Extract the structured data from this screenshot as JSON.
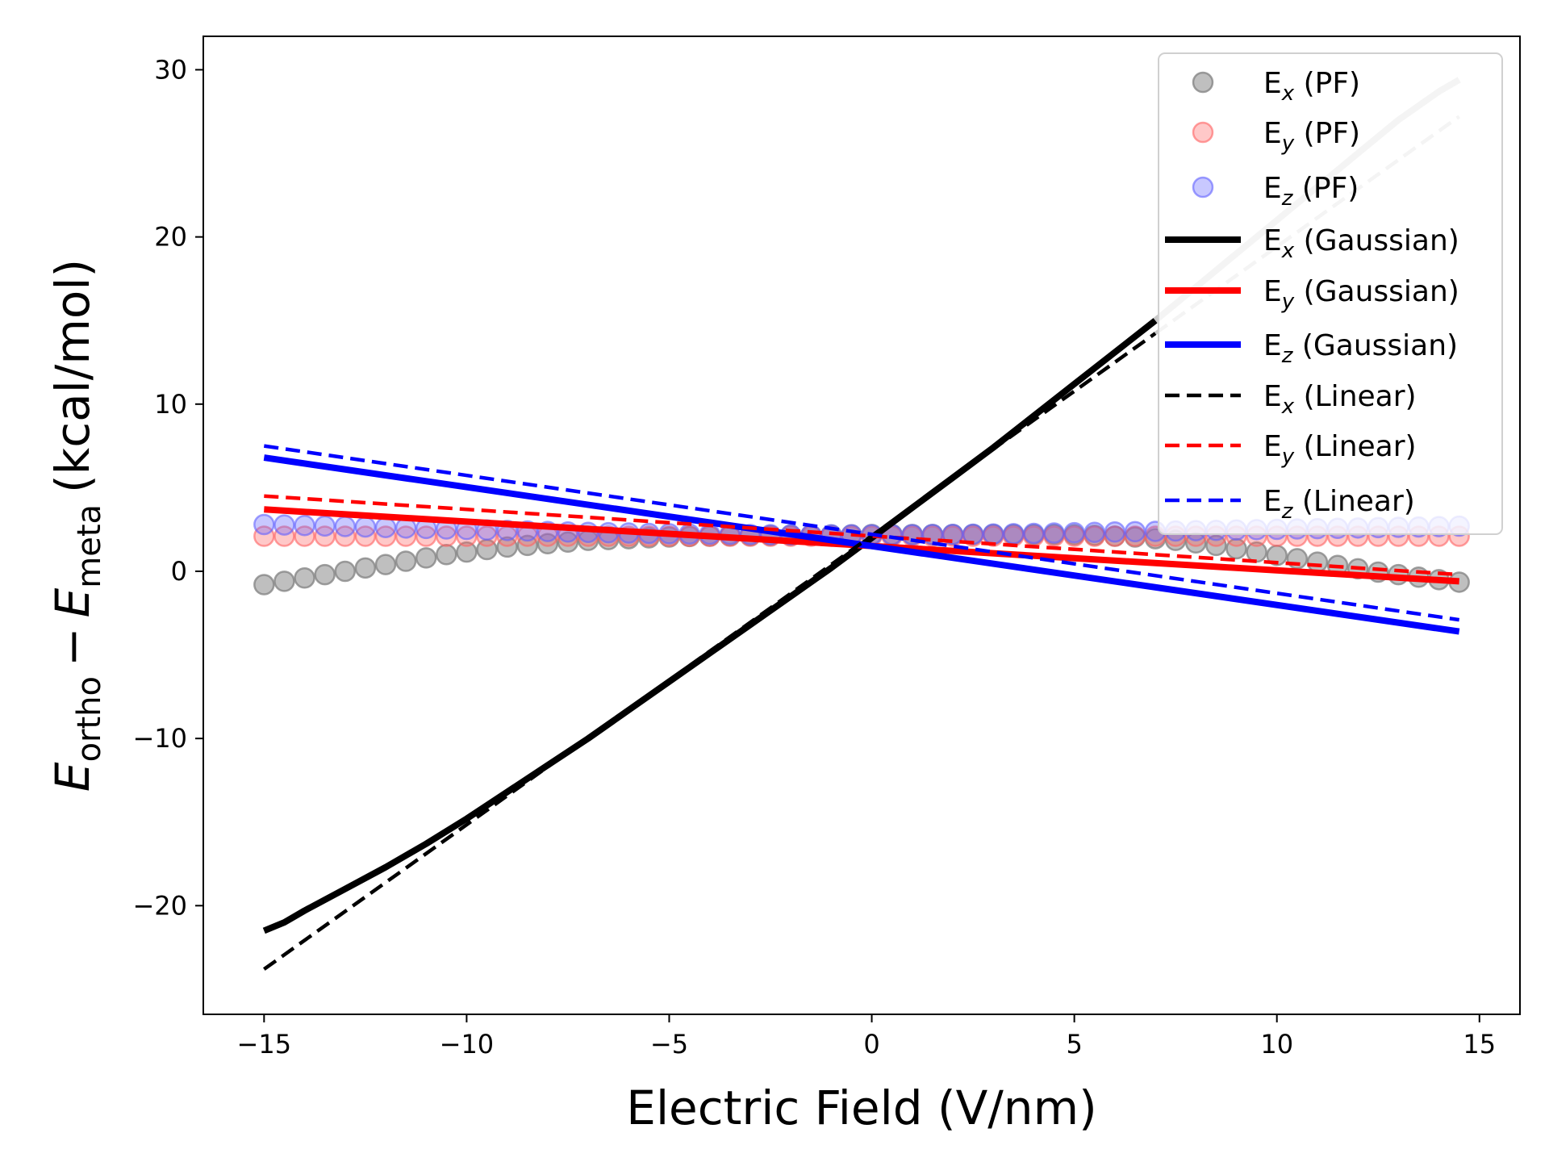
{
  "chart_data": {
    "type": "line",
    "xlabel": "Electric Field (V/nm)",
    "ylabel": {
      "main": "E",
      "sub1": "ortho",
      "minus": "−",
      "sub2": "meta",
      "unit": "(kcal/mol)"
    },
    "xlim": [
      -16.5,
      16
    ],
    "ylim": [
      -26.5,
      32
    ],
    "xticks": [
      -15,
      -10,
      -5,
      0,
      5,
      10,
      15
    ],
    "xtick_labels": [
      "−15",
      "−10",
      "−5",
      "0",
      "5",
      "10",
      "15"
    ],
    "yticks": [
      -20,
      -10,
      0,
      10,
      20,
      30
    ],
    "ytick_labels": [
      "−20",
      "−10",
      "0",
      "10",
      "20",
      "30"
    ],
    "grid": false,
    "legend_position": "top-right",
    "x": [
      -15,
      -14.5,
      -14,
      -13.5,
      -13,
      -12.5,
      -12,
      -11.5,
      -11,
      -10.5,
      -10,
      -9.5,
      -9,
      -8.5,
      -8,
      -7.5,
      -7,
      -6.5,
      -6,
      -5.5,
      -5,
      -4.5,
      -4,
      -3.5,
      -3,
      -2.5,
      -2,
      -1.5,
      -1,
      -0.5,
      0,
      0.5,
      1,
      1.5,
      2,
      2.5,
      3,
      3.5,
      4,
      4.5,
      5,
      5.5,
      6,
      6.5,
      7,
      7.5,
      8,
      8.5,
      9,
      9.5,
      10,
      10.5,
      11,
      11.5,
      12,
      12.5,
      13,
      13.5,
      14,
      14.5
    ],
    "series": [
      {
        "key": "ex_pf",
        "label": {
          "base": "E",
          "sub": "x",
          "rest": " (PF)"
        },
        "style": "scatter",
        "color": "#808080",
        "opacity": 0.5,
        "values": [
          -0.8,
          -0.6,
          -0.4,
          -0.2,
          0.0,
          0.2,
          0.4,
          0.6,
          0.8,
          1.0,
          1.15,
          1.3,
          1.45,
          1.55,
          1.65,
          1.75,
          1.85,
          1.9,
          1.95,
          2.0,
          2.05,
          2.08,
          2.1,
          2.12,
          2.13,
          2.14,
          2.15,
          2.16,
          2.17,
          2.18,
          2.2,
          2.2,
          2.2,
          2.2,
          2.2,
          2.2,
          2.2,
          2.2,
          2.2,
          2.2,
          2.18,
          2.15,
          2.1,
          2.05,
          1.95,
          1.85,
          1.7,
          1.55,
          1.35,
          1.15,
          0.95,
          0.75,
          0.55,
          0.35,
          0.15,
          -0.05,
          -0.2,
          -0.35,
          -0.5,
          -0.65
        ]
      },
      {
        "key": "ey_pf",
        "label": {
          "base": "E",
          "sub": "y",
          "rest": " (PF)"
        },
        "style": "scatter",
        "color": "#ff6060",
        "opacity": 0.35,
        "values": [
          2.1,
          2.1,
          2.1,
          2.1,
          2.1,
          2.1,
          2.1,
          2.1,
          2.1,
          2.1,
          2.1,
          2.1,
          2.1,
          2.1,
          2.1,
          2.1,
          2.1,
          2.1,
          2.1,
          2.1,
          2.1,
          2.1,
          2.1,
          2.1,
          2.1,
          2.1,
          2.1,
          2.1,
          2.1,
          2.1,
          2.1,
          2.1,
          2.1,
          2.1,
          2.1,
          2.1,
          2.1,
          2.1,
          2.1,
          2.1,
          2.1,
          2.1,
          2.1,
          2.1,
          2.1,
          2.1,
          2.1,
          2.1,
          2.1,
          2.1,
          2.1,
          2.1,
          2.1,
          2.1,
          2.1,
          2.1,
          2.1,
          2.1,
          2.1,
          2.1
        ]
      },
      {
        "key": "ez_pf",
        "label": {
          "base": "E",
          "sub": "z",
          "rest": " (PF)"
        },
        "style": "scatter",
        "color": "#6060ff",
        "opacity": 0.35,
        "values": [
          2.8,
          2.77,
          2.74,
          2.71,
          2.68,
          2.65,
          2.62,
          2.59,
          2.56,
          2.53,
          2.5,
          2.47,
          2.44,
          2.41,
          2.38,
          2.35,
          2.33,
          2.31,
          2.29,
          2.27,
          2.25,
          2.23,
          2.22,
          2.21,
          2.2,
          2.19,
          2.18,
          2.18,
          2.18,
          2.18,
          2.18,
          2.18,
          2.19,
          2.2,
          2.21,
          2.22,
          2.23,
          2.25,
          2.27,
          2.29,
          2.31,
          2.33,
          2.35,
          2.37,
          2.39,
          2.41,
          2.43,
          2.45,
          2.47,
          2.49,
          2.51,
          2.53,
          2.55,
          2.57,
          2.59,
          2.61,
          2.63,
          2.65,
          2.67,
          2.7
        ]
      },
      {
        "key": "ex_gauss",
        "label": {
          "base": "E",
          "sub": "x",
          "rest": " (Gaussian)"
        },
        "style": "solid",
        "color": "#000000",
        "points": [
          [
            -15,
            -21.5
          ],
          [
            -14.5,
            -21.0
          ],
          [
            -14,
            -20.3
          ],
          [
            -13,
            -19.0
          ],
          [
            -12,
            -17.7
          ],
          [
            -11,
            -16.3
          ],
          [
            -10,
            -14.8
          ],
          [
            -9,
            -13.2
          ],
          [
            -8,
            -11.6
          ],
          [
            -7,
            -10.0
          ],
          [
            -6,
            -8.3
          ],
          [
            -5,
            -6.6
          ],
          [
            -4,
            -4.9
          ],
          [
            -3,
            -3.2
          ],
          [
            -2,
            -1.5
          ],
          [
            -1,
            0.2
          ],
          [
            0,
            2.0
          ],
          [
            1,
            3.8
          ],
          [
            2,
            5.6
          ],
          [
            3,
            7.4
          ],
          [
            4,
            9.3
          ],
          [
            5,
            11.2
          ],
          [
            6,
            13.1
          ],
          [
            7,
            15.0
          ],
          [
            8,
            17.0
          ],
          [
            9,
            19.0
          ],
          [
            10,
            21.0
          ],
          [
            11,
            23.0
          ],
          [
            12,
            25.0
          ],
          [
            13,
            27.0
          ],
          [
            14,
            28.7
          ],
          [
            14.5,
            29.4
          ]
        ],
        "fade_from_x": 7,
        "fade_color": "#c8c8c8"
      },
      {
        "key": "ey_gauss",
        "label": {
          "base": "E",
          "sub": "y",
          "rest": " (Gaussian)"
        },
        "style": "solid",
        "color": "#ff0000",
        "points": [
          [
            -15,
            3.7
          ],
          [
            14.5,
            -0.6
          ]
        ]
      },
      {
        "key": "ez_gauss",
        "label": {
          "base": "E",
          "sub": "z",
          "rest": " (Gaussian)"
        },
        "style": "solid",
        "color": "#0000ff",
        "points": [
          [
            -15,
            6.8
          ],
          [
            14.5,
            -3.6
          ]
        ]
      },
      {
        "key": "ex_lin",
        "label": {
          "base": "E",
          "sub": "x",
          "rest": " (Linear)"
        },
        "style": "dashed",
        "color": "#000000",
        "points": [
          [
            -15,
            -23.8
          ],
          [
            14.5,
            27.2
          ]
        ],
        "fade_from_x": 7,
        "fade_color": "#c8c8c8"
      },
      {
        "key": "ey_lin",
        "label": {
          "base": "E",
          "sub": "y",
          "rest": " (Linear)"
        },
        "style": "dashed",
        "color": "#ff0000",
        "points": [
          [
            -15,
            4.5
          ],
          [
            14.5,
            -0.2
          ]
        ]
      },
      {
        "key": "ez_lin",
        "label": {
          "base": "E",
          "sub": "z",
          "rest": " (Linear)"
        },
        "style": "dashed",
        "color": "#0000ff",
        "points": [
          [
            -15,
            7.5
          ],
          [
            14.5,
            -2.9
          ]
        ]
      }
    ]
  }
}
